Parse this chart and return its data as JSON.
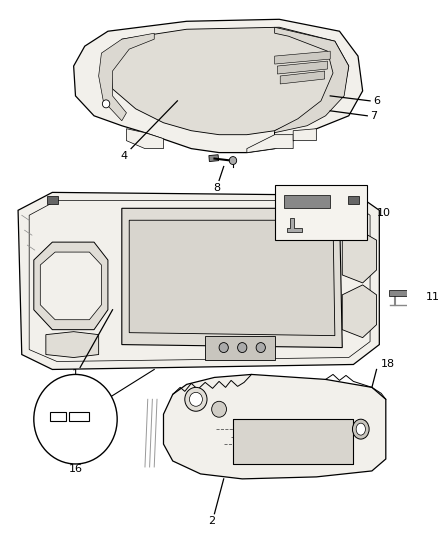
{
  "background_color": "#ffffff",
  "line_color": "#000000",
  "fill_light": "#f2f0eb",
  "fill_mid": "#e0ddd6",
  "fill_dark": "#c8c5be",
  "fig_width": 4.38,
  "fig_height": 5.33,
  "dpi": 100
}
